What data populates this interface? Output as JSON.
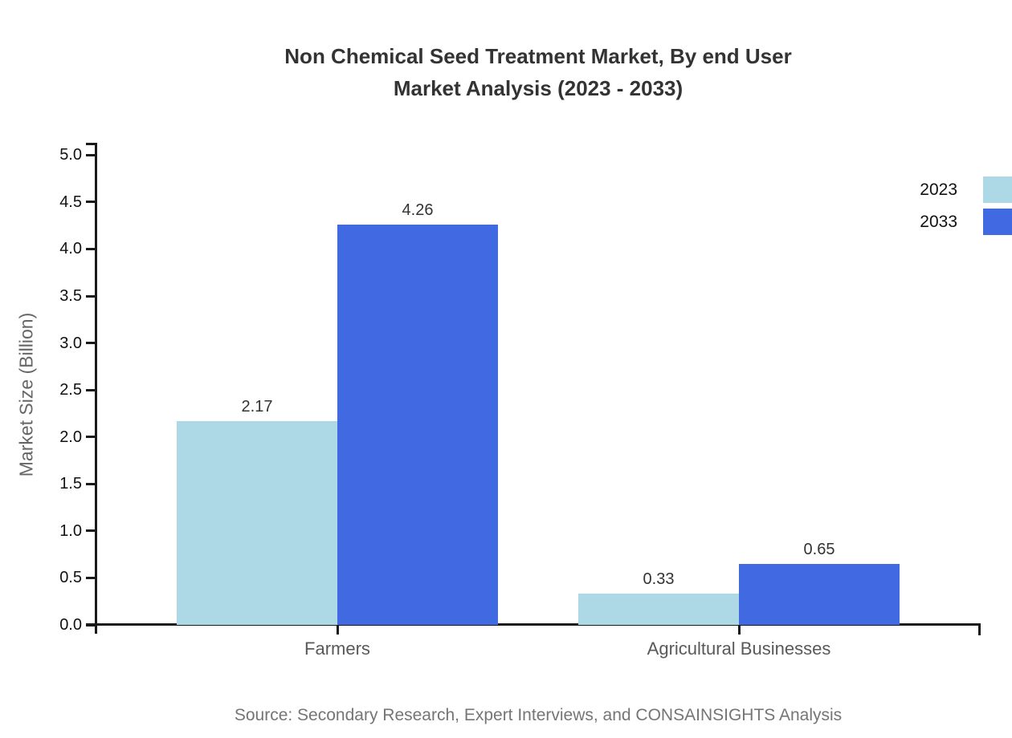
{
  "title": {
    "line1": "Non Chemical Seed Treatment Market, By end User",
    "line2": "Market Analysis (2023 - 2033)"
  },
  "chart_data": {
    "type": "bar",
    "title": "Non Chemical Seed Treatment Market, By end User Market Analysis (2023 - 2033)",
    "categories": [
      "Farmers",
      "Agricultural Businesses"
    ],
    "series": [
      {
        "name": "2023",
        "color": "#ADD8E6",
        "values": [
          2.17,
          0.33
        ]
      },
      {
        "name": "2033",
        "color": "#4169E1",
        "values": [
          4.26,
          0.65
        ]
      }
    ],
    "xlabel": "",
    "ylabel": "Market Size (Billion)",
    "ylim": [
      0,
      5
    ],
    "yticks": [
      "0.0",
      "0.5",
      "1.0",
      "1.5",
      "2.0",
      "2.5",
      "3.0",
      "3.5",
      "4.0",
      "4.5",
      "5.0"
    ],
    "grid": false,
    "legend_position": "top-right-outside",
    "value_label_decimals": 2
  },
  "source": "Source: Secondary Research, Expert Interviews, and CONSAINSIGHTS Analysis",
  "colors": {
    "series_2023": "#ADD8E6",
    "series_2033": "#4169E1",
    "axis": "#1a1a1a",
    "title_text": "#333333",
    "category_text": "#595959",
    "ylabel_text": "#666666",
    "source_text": "#757575"
  }
}
